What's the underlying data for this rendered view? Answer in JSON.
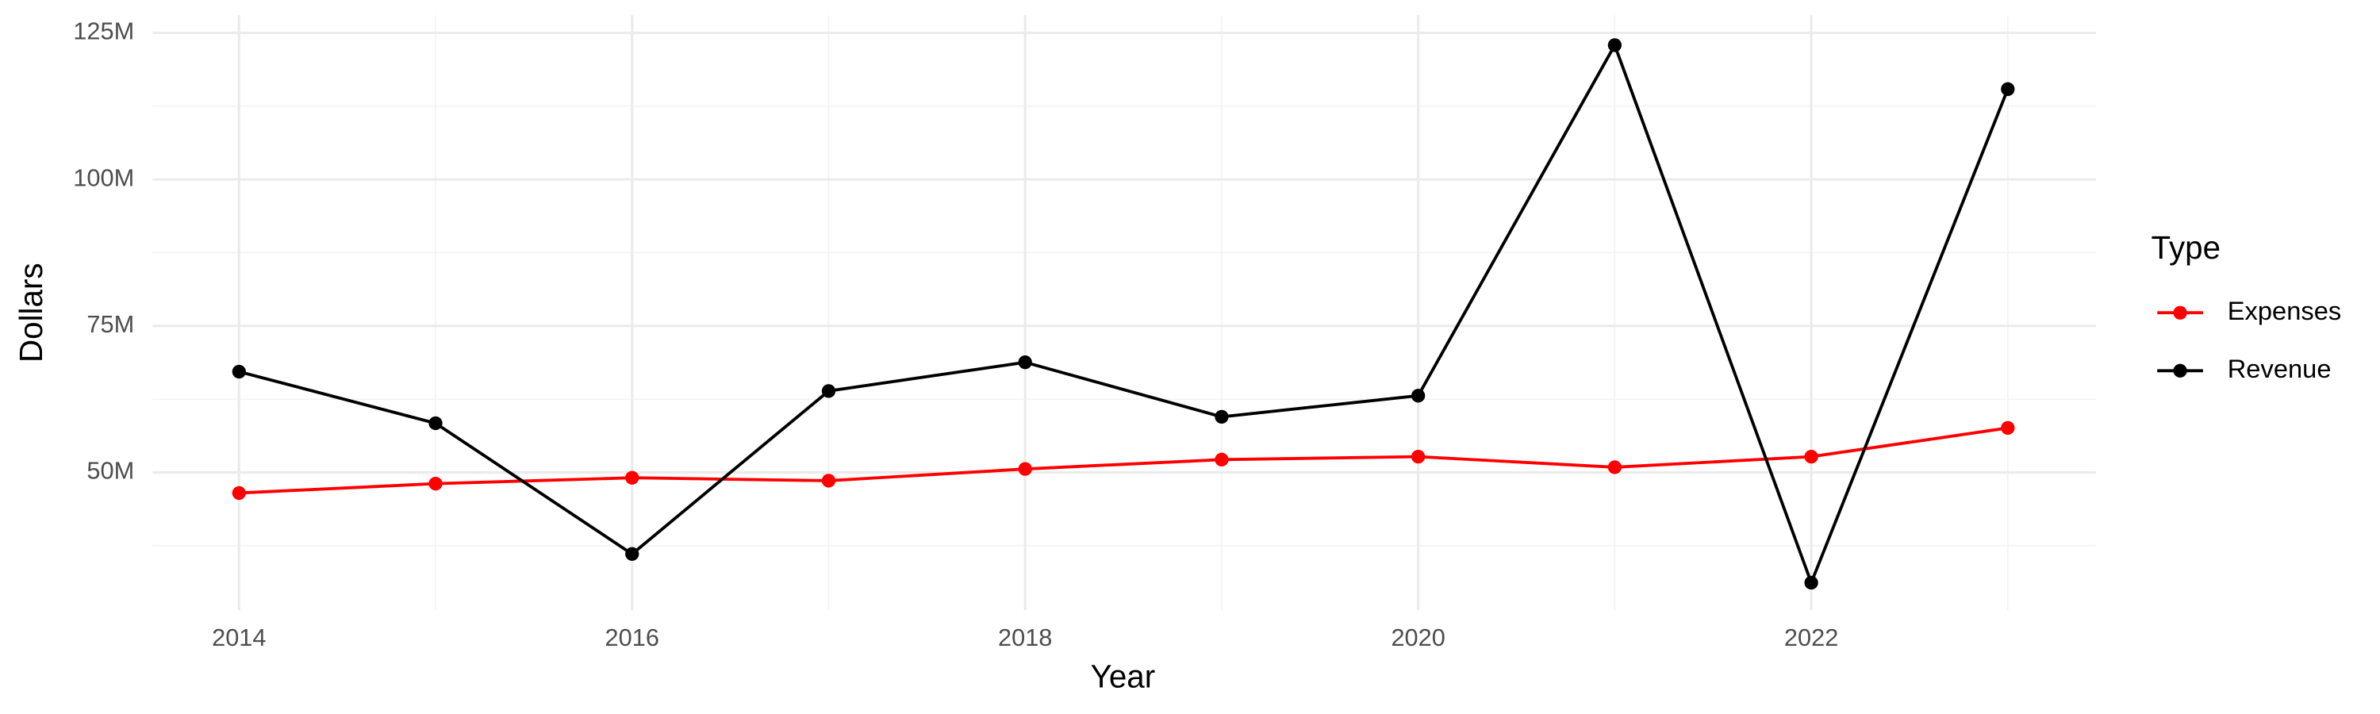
{
  "chart_data": {
    "type": "line",
    "x": [
      2014,
      2015,
      2016,
      2017,
      2018,
      2019,
      2020,
      2021,
      2022,
      2023
    ],
    "series": [
      {
        "name": "Expenses",
        "color": "#ff0000",
        "values": [
          46500000,
          48100000,
          49100000,
          48600000,
          50600000,
          52200000,
          52700000,
          50900000,
          52700000,
          57600000
        ]
      },
      {
        "name": "Revenue",
        "color": "#000000",
        "values": [
          67200000,
          58400000,
          36100000,
          63900000,
          68800000,
          59500000,
          63100000,
          122900000,
          31200000,
          115400000
        ]
      }
    ],
    "xlabel": "Year",
    "ylabel": "Dollars",
    "legend_title": "Type",
    "xlim": [
      2013.56,
      2023.45
    ],
    "xticks": [
      2014,
      2016,
      2018,
      2020,
      2022
    ],
    "ylim": [
      26500000,
      128000000
    ],
    "yticks": [
      {
        "value": 50000000,
        "label": "50M"
      },
      {
        "value": 75000000,
        "label": "75M"
      },
      {
        "value": 100000000,
        "label": "100M"
      },
      {
        "value": 125000000,
        "label": "125M"
      }
    ],
    "grid": true,
    "legend": "right"
  }
}
